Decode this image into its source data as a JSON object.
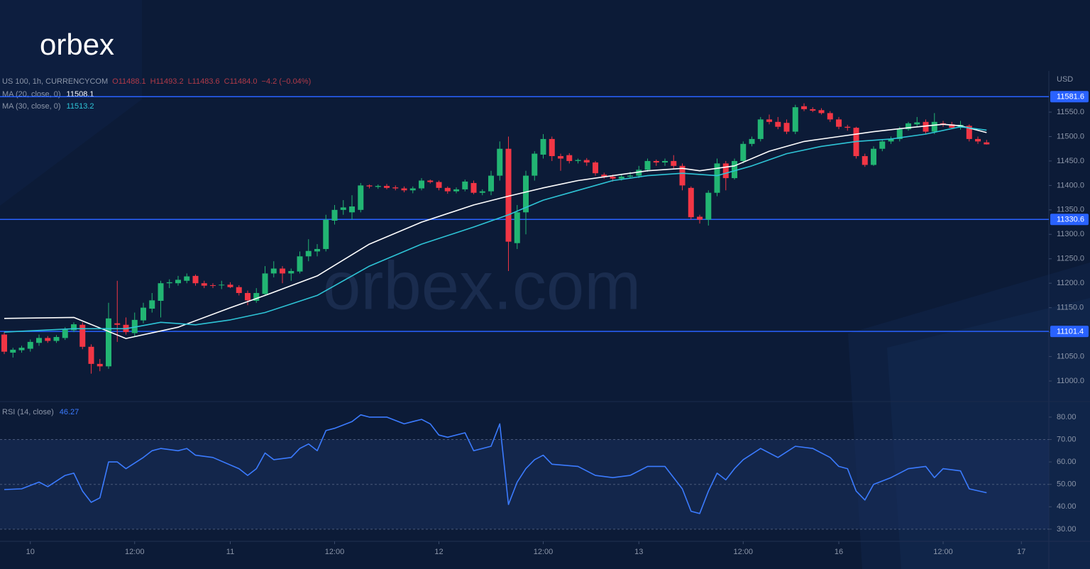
{
  "logo": "orbex",
  "watermark": "orbex.com",
  "chart_data": [
    {
      "type": "candlestick",
      "title": "US 100, 1h, CURRENCYCOM",
      "ohlc_labels": [
        "O11488.1",
        "H11493.2",
        "L11483.6",
        "C11484.0",
        "−4.2 (−0.04%)"
      ],
      "unit": "USD",
      "up_color": "#22b573",
      "down_color": "#f23645",
      "level_color": "#2962ff",
      "open": [
        11095,
        11058,
        11063,
        11066,
        11078,
        11088,
        11082,
        11088,
        11104,
        11115,
        11070,
        11035,
        11030,
        11118,
        11115,
        11098,
        11124,
        11148,
        11164,
        11200,
        11200,
        11205,
        11215,
        11200,
        11196,
        11196,
        11197,
        11192,
        11180,
        11164,
        11178,
        11220,
        11230,
        11220,
        11224,
        11255,
        11265,
        11270,
        11328,
        11350,
        11345,
        11350,
        11400,
        11397,
        11399,
        11396,
        11394,
        11390,
        11394,
        11410,
        11407,
        11395,
        11388,
        11392,
        11405,
        11385,
        11388,
        11420,
        11475,
        11282,
        11345,
        11420,
        11463,
        11495,
        11460,
        11462,
        11450,
        11452,
        11447,
        11422,
        11418,
        11414,
        11418,
        11420,
        11432,
        11450,
        11447,
        11450,
        11440,
        11395,
        11336,
        11330,
        11385,
        11445,
        11415,
        11450,
        11485,
        11495,
        11535,
        11530,
        11528,
        11510,
        11562,
        11556,
        11554,
        11548,
        11535,
        11520,
        11518,
        11460,
        11442,
        11475,
        11490,
        11495,
        11515,
        11525,
        11530,
        11510,
        11527,
        11525,
        11518,
        11522,
        11495,
        11488.1
      ],
      "high": [
        11100,
        11068,
        11072,
        11085,
        11095,
        11092,
        11094,
        11110,
        11120,
        11120,
        11075,
        11045,
        11160,
        11205,
        11130,
        11140,
        11160,
        11180,
        11205,
        11208,
        11215,
        11220,
        11218,
        11205,
        11200,
        11205,
        11202,
        11196,
        11185,
        11190,
        11235,
        11245,
        11235,
        11230,
        11265,
        11290,
        11280,
        11340,
        11360,
        11370,
        11380,
        11405,
        11402,
        11402,
        11403,
        11400,
        11398,
        11398,
        11415,
        11412,
        11410,
        11398,
        11396,
        11412,
        11410,
        11392,
        11430,
        11490,
        11500,
        11360,
        11430,
        11470,
        11505,
        11500,
        11465,
        11466,
        11455,
        11456,
        11450,
        11426,
        11422,
        11424,
        11428,
        11440,
        11455,
        11453,
        11455,
        11462,
        11445,
        11398,
        11340,
        11390,
        11455,
        11450,
        11455,
        11490,
        11500,
        11540,
        11545,
        11540,
        11535,
        11565,
        11568,
        11560,
        11558,
        11552,
        11540,
        11524,
        11520,
        11465,
        11480,
        11495,
        11500,
        11520,
        11530,
        11540,
        11535,
        11548,
        11532,
        11530,
        11532,
        11525,
        11500,
        11493.2
      ],
      "low": [
        11055,
        11048,
        11058,
        11060,
        11072,
        11078,
        11078,
        11084,
        11100,
        11065,
        11015,
        11020,
        11025,
        11080,
        11095,
        11090,
        11118,
        11140,
        11130,
        11190,
        11195,
        11200,
        11195,
        11190,
        11190,
        11188,
        11190,
        11175,
        11155,
        11160,
        11175,
        11212,
        11200,
        11205,
        11220,
        11245,
        11255,
        11265,
        11320,
        11340,
        11330,
        11345,
        11394,
        11393,
        11392,
        11390,
        11386,
        11384,
        11390,
        11404,
        11390,
        11383,
        11384,
        11388,
        11382,
        11380,
        11380,
        11410,
        11225,
        11270,
        11300,
        11410,
        11455,
        11450,
        11430,
        11445,
        11445,
        11440,
        11420,
        11414,
        11408,
        11410,
        11414,
        11415,
        11428,
        11440,
        11440,
        11435,
        11390,
        11330,
        11322,
        11318,
        11378,
        11390,
        11412,
        11445,
        11480,
        11490,
        11525,
        11515,
        11505,
        11505,
        11552,
        11550,
        11545,
        11530,
        11515,
        11512,
        11455,
        11438,
        11440,
        11470,
        11485,
        11490,
        11512,
        11520,
        11505,
        11505,
        11520,
        11515,
        11514,
        11490,
        11485,
        11483.6
      ],
      "close": [
        11060,
        11064,
        11068,
        11080,
        11088,
        11082,
        11090,
        11105,
        11116,
        11070,
        11035,
        11030,
        11128,
        11115,
        11100,
        11125,
        11150,
        11165,
        11200,
        11202,
        11207,
        11214,
        11200,
        11195,
        11195,
        11197,
        11192,
        11180,
        11165,
        11180,
        11220,
        11230,
        11220,
        11225,
        11255,
        11266,
        11270,
        11330,
        11350,
        11355,
        11357,
        11400,
        11398,
        11399,
        11395,
        11394,
        11390,
        11394,
        11410,
        11407,
        11395,
        11388,
        11392,
        11408,
        11385,
        11388,
        11420,
        11475,
        11285,
        11345,
        11420,
        11465,
        11495,
        11460,
        11455,
        11450,
        11452,
        11447,
        11425,
        11418,
        11414,
        11418,
        11420,
        11432,
        11450,
        11447,
        11450,
        11440,
        11400,
        11335,
        11330,
        11385,
        11445,
        11415,
        11450,
        11485,
        11495,
        11535,
        11530,
        11520,
        11510,
        11560,
        11556,
        11553,
        11548,
        11535,
        11520,
        11518,
        11460,
        11442,
        11475,
        11490,
        11495,
        11515,
        11527,
        11529,
        11510,
        11530,
        11525,
        11518,
        11524,
        11495,
        11490,
        11484
      ],
      "series": [
        {
          "name": "MA (20, close, 0)",
          "color": "#ffffff",
          "x": [
            0,
            8,
            14,
            20,
            26,
            30,
            36,
            42,
            48,
            54,
            58,
            62,
            66,
            70,
            74,
            78,
            80,
            84,
            88,
            92,
            96,
            100,
            104,
            108,
            110,
            113
          ],
          "values": [
            11128,
            11130,
            11087,
            11110,
            11150,
            11175,
            11215,
            11280,
            11325,
            11360,
            11378,
            11395,
            11410,
            11420,
            11430,
            11435,
            11430,
            11440,
            11470,
            11490,
            11500,
            11510,
            11518,
            11525,
            11522,
            11508.1
          ]
        },
        {
          "name": "MA (30, close, 0)",
          "color": "#2ec4d6",
          "x": [
            0,
            8,
            14,
            18,
            22,
            26,
            30,
            36,
            42,
            48,
            54,
            58,
            62,
            66,
            70,
            74,
            78,
            82,
            86,
            90,
            94,
            98,
            102,
            106,
            110,
            113
          ],
          "values": [
            11100,
            11107,
            11107,
            11120,
            11115,
            11125,
            11140,
            11175,
            11235,
            11280,
            11315,
            11340,
            11370,
            11390,
            11410,
            11420,
            11425,
            11420,
            11440,
            11465,
            11480,
            11490,
            11495,
            11505,
            11520,
            11513.2
          ]
        }
      ],
      "levels": [
        11581.6,
        11330.6,
        11101.4
      ],
      "xlim": [
        -0.49,
        120.16
      ],
      "xticks": [
        {
          "value": 3,
          "label": "10"
        },
        {
          "value": 15,
          "label": "12:00"
        },
        {
          "value": 26,
          "label": "11"
        },
        {
          "value": 38,
          "label": "12:00"
        },
        {
          "value": 50,
          "label": "12"
        },
        {
          "value": 62,
          "label": "12:00"
        },
        {
          "value": 73,
          "label": "13"
        },
        {
          "value": 85,
          "label": "12:00"
        },
        {
          "value": 96,
          "label": "16"
        },
        {
          "value": 108,
          "label": "12:00"
        },
        {
          "value": 117,
          "label": "17"
        }
      ],
      "ylim": [
        10959.4,
        11634.2
      ],
      "yticks": [
        {
          "value": 11000,
          "label": "11000.0"
        },
        {
          "value": 11050,
          "label": "11050.0"
        },
        {
          "value": 11100,
          "label": "11100.0"
        },
        {
          "value": 11150,
          "label": "11150.0"
        },
        {
          "value": 11200,
          "label": "11200.0"
        },
        {
          "value": 11250,
          "label": "11250.0"
        },
        {
          "value": 11300,
          "label": "11300.0"
        },
        {
          "value": 11350,
          "label": "11350.0"
        },
        {
          "value": 11400,
          "label": "11400.0"
        },
        {
          "value": 11450,
          "label": "11450.0"
        },
        {
          "value": 11500,
          "label": "11500.0"
        },
        {
          "value": 11550,
          "label": "11550.0"
        }
      ]
    },
    {
      "type": "line",
      "title": "RSI (14, close)",
      "band": [
        30,
        70
      ],
      "reference_lines": [
        70,
        50,
        30
      ],
      "series": [
        {
          "name": "RSI",
          "color": "#3b7bff",
          "x": [
            0,
            2,
            4,
            5,
            7,
            8,
            9,
            10,
            11,
            12,
            13,
            14,
            16,
            17,
            18,
            20,
            21,
            22,
            24,
            27,
            28,
            29,
            30,
            31,
            33,
            34,
            35,
            36,
            37,
            38,
            40,
            41,
            42,
            44,
            46,
            47,
            48,
            49,
            50,
            51,
            53,
            54,
            56,
            57,
            58,
            59,
            60,
            61,
            62,
            63,
            66,
            68,
            70,
            72,
            74,
            76,
            78,
            79,
            80,
            81,
            82,
            83,
            84,
            85,
            87,
            89,
            91,
            93,
            95,
            96,
            97,
            98,
            99,
            100,
            102,
            104,
            106,
            107,
            108,
            110,
            111,
            113
          ],
          "values": [
            47.7,
            48,
            51,
            49,
            54,
            55,
            47,
            42,
            44,
            60,
            60,
            57,
            62,
            65,
            66,
            65,
            66,
            63,
            62,
            57,
            54,
            57,
            64,
            61,
            62,
            66,
            68,
            65,
            74,
            75,
            78,
            81,
            80,
            80,
            77,
            78,
            79,
            77,
            72,
            71,
            73,
            65,
            67,
            77,
            41,
            51,
            57,
            61,
            63,
            59,
            58,
            54,
            53,
            54,
            58,
            58,
            48,
            38,
            37,
            47,
            55,
            52,
            57,
            61,
            66,
            62,
            67,
            66,
            62,
            58,
            57,
            47,
            43,
            50,
            53,
            57,
            58,
            53,
            57,
            56,
            48,
            46.27
          ]
        }
      ],
      "ylim": [
        24.9,
        86.3
      ],
      "yticks": [
        {
          "value": 30,
          "label": "30.00"
        },
        {
          "value": 40,
          "label": "40.00"
        },
        {
          "value": 50,
          "label": "50.00"
        },
        {
          "value": 60,
          "label": "60.00"
        },
        {
          "value": 70,
          "label": "70.00"
        },
        {
          "value": 80,
          "label": "80.00"
        }
      ]
    }
  ]
}
